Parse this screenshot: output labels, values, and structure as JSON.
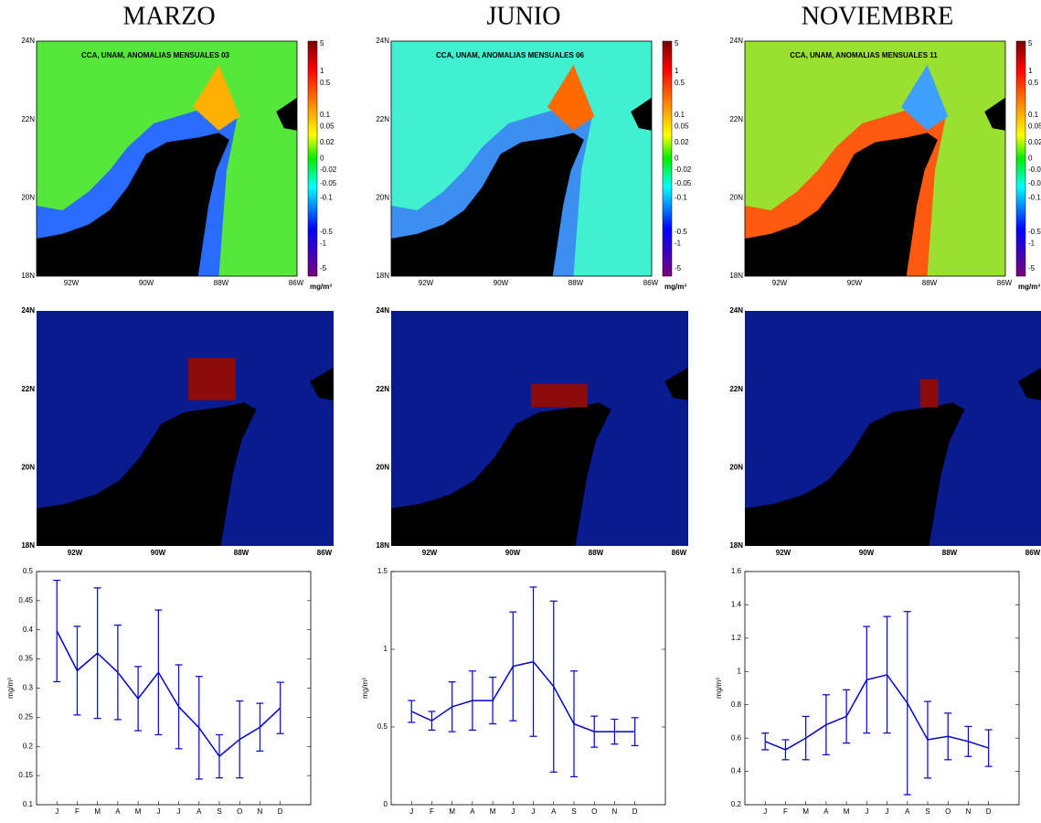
{
  "titles": [
    "MARZO",
    "JUNIO",
    "NOVIEMBRE"
  ],
  "anomaly_maps": {
    "headers": [
      "CCA, UNAM, ANOMALIAS MENSUALES  03",
      "CCA, UNAM, ANOMALIAS MENSUALES  06",
      "CCA, UNAM, ANOMALIAS MENSUALES  11"
    ],
    "lat_labels": [
      "24N",
      "22N",
      "20N",
      "18N"
    ],
    "lon_labels": [
      "92W",
      "90W",
      "88W",
      "86W"
    ],
    "colorbar_labels": [
      5,
      1,
      0.5,
      0.1,
      0.05,
      0.02,
      0,
      -0.02,
      -0.05,
      -0.1,
      -0.5,
      -1,
      -5
    ],
    "colorbar_unit": "mg/m³"
  },
  "mask_maps": {
    "lat_labels": [
      "24N",
      "22N",
      "20N",
      "18N"
    ],
    "lon_labels": [
      "92W",
      "90W",
      "88W",
      "86W"
    ]
  },
  "chart_data": [
    {
      "type": "line",
      "ylabel": "mg/m³",
      "color": "#0000cc",
      "categories": [
        "J",
        "F",
        "M",
        "A",
        "M",
        "J",
        "J",
        "A",
        "S",
        "O",
        "N",
        "D"
      ],
      "values": [
        0.398,
        0.33,
        0.36,
        0.327,
        0.282,
        0.327,
        0.268,
        0.232,
        0.183,
        0.212,
        0.233,
        0.266
      ],
      "errors": [
        0.087,
        0.076,
        0.112,
        0.081,
        0.055,
        0.107,
        0.072,
        0.088,
        0.037,
        0.066,
        0.041,
        0.044
      ],
      "ylim": [
        0.1,
        0.5
      ],
      "yticks": [
        0.1,
        0.15,
        0.2,
        0.25,
        0.3,
        0.35,
        0.4,
        0.45,
        0.5
      ]
    },
    {
      "type": "line",
      "ylabel": "mg/m³",
      "color": "#0000cc",
      "categories": [
        "J",
        "F",
        "M",
        "A",
        "M",
        "J",
        "J",
        "A",
        "S",
        "O",
        "N",
        "D"
      ],
      "values": [
        0.6,
        0.54,
        0.63,
        0.67,
        0.67,
        0.89,
        0.92,
        0.76,
        0.52,
        0.47,
        0.47,
        0.47
      ],
      "errors": [
        0.07,
        0.06,
        0.16,
        0.19,
        0.15,
        0.35,
        0.48,
        0.55,
        0.34,
        0.1,
        0.08,
        0.09
      ],
      "ylim": [
        0,
        1.5
      ],
      "yticks": [
        0,
        0.5,
        1,
        1.5
      ]
    },
    {
      "type": "line",
      "ylabel": "mg/m³",
      "color": "#0000cc",
      "categories": [
        "J",
        "F",
        "M",
        "A",
        "M",
        "J",
        "J",
        "A",
        "S",
        "O",
        "N",
        "D"
      ],
      "values": [
        0.58,
        0.53,
        0.6,
        0.68,
        0.73,
        0.95,
        0.98,
        0.81,
        0.59,
        0.61,
        0.58,
        0.54
      ],
      "errors": [
        0.05,
        0.06,
        0.13,
        0.18,
        0.16,
        0.32,
        0.35,
        0.55,
        0.23,
        0.14,
        0.09,
        0.11
      ],
      "ylim": [
        0.2,
        1.6
      ],
      "yticks": [
        0.2,
        0.4,
        0.6,
        0.8,
        1,
        1.2,
        1.4,
        1.6
      ]
    }
  ]
}
